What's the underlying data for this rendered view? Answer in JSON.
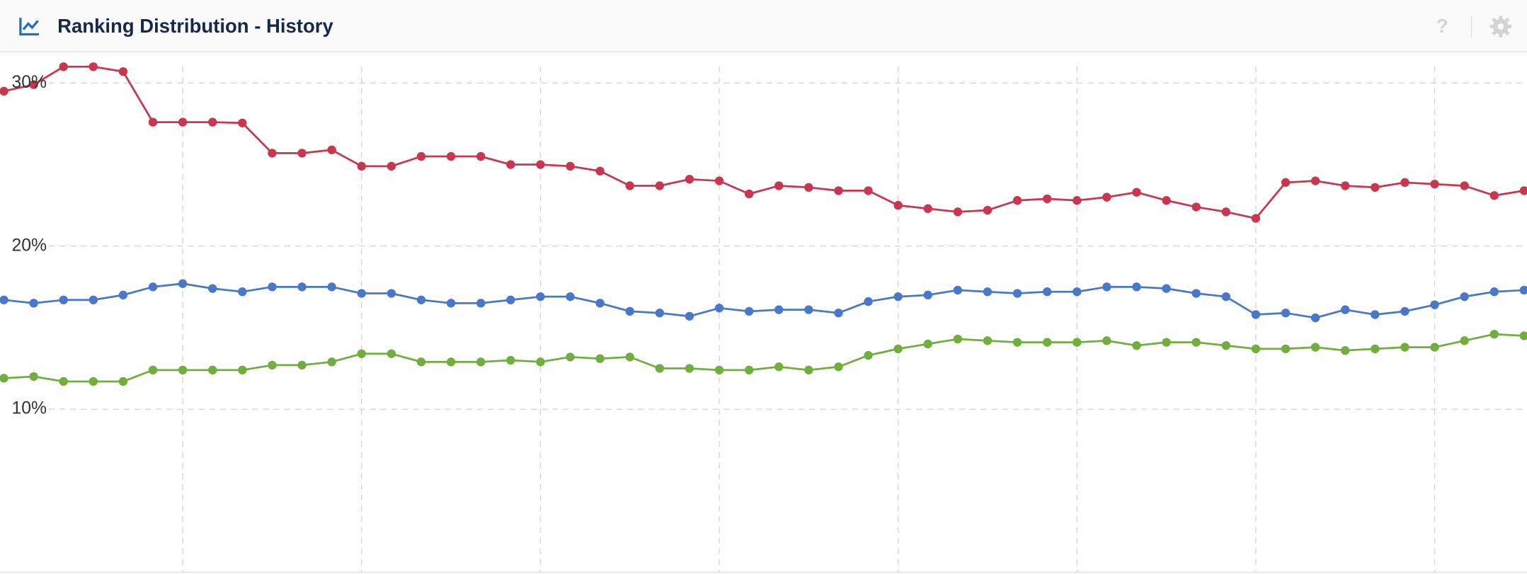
{
  "header": {
    "title": "Ranking Distribution - History"
  },
  "chart_data": {
    "type": "line",
    "categories": [
      null,
      null,
      null,
      null,
      null,
      null,
      null,
      null,
      null,
      null,
      null,
      null,
      null,
      null,
      null,
      null,
      null,
      null,
      null,
      null,
      null,
      null,
      null,
      null,
      null,
      null,
      null,
      null,
      null,
      null,
      null,
      null,
      null,
      null,
      null,
      null,
      null,
      null,
      null,
      null,
      null,
      null,
      null,
      null,
      null,
      null,
      null,
      null,
      null,
      null,
      null,
      null
    ],
    "ylim": [
      0,
      32
    ],
    "yticks": [
      {
        "value": 10,
        "label": "10%"
      },
      {
        "value": 20,
        "label": "20%"
      },
      {
        "value": 30,
        "label": "30%"
      }
    ],
    "grid": true,
    "series": [
      {
        "color": "#c8374e",
        "values": [
          29.5,
          29.9,
          31.0,
          31.0,
          30.7,
          27.6,
          27.6,
          27.6,
          27.55,
          25.7,
          25.7,
          25.9,
          24.9,
          24.9,
          25.5,
          25.5,
          25.5,
          25.0,
          25.0,
          24.9,
          24.6,
          23.7,
          23.7,
          24.1,
          24.0,
          23.2,
          23.7,
          23.6,
          23.4,
          23.4,
          22.5,
          22.3,
          22.1,
          22.2,
          22.8,
          22.9,
          22.8,
          23.0,
          23.3,
          22.8,
          22.4,
          22.1,
          21.7,
          23.9,
          24.0,
          23.7,
          23.6,
          23.9,
          23.8,
          23.7,
          23.1,
          23.4
        ]
      },
      {
        "color": "#4a78c9",
        "values": [
          16.7,
          16.5,
          16.7,
          16.7,
          17.0,
          17.5,
          17.7,
          17.4,
          17.2,
          17.5,
          17.5,
          17.5,
          17.1,
          17.1,
          16.7,
          16.5,
          16.5,
          16.7,
          16.9,
          16.9,
          16.5,
          16.0,
          15.9,
          15.7,
          16.2,
          16.0,
          16.1,
          16.1,
          15.9,
          16.6,
          16.9,
          17.0,
          17.3,
          17.2,
          17.1,
          17.2,
          17.2,
          17.5,
          17.5,
          17.4,
          17.1,
          16.9,
          15.8,
          15.9,
          15.6,
          16.1,
          15.8,
          16.0,
          16.4,
          16.9,
          17.2,
          17.3
        ]
      },
      {
        "color": "#72ad3f",
        "values": [
          11.9,
          12.0,
          11.7,
          11.7,
          11.7,
          12.4,
          12.4,
          12.4,
          12.4,
          12.7,
          12.7,
          12.9,
          13.4,
          13.4,
          12.9,
          12.9,
          12.9,
          13.0,
          12.9,
          13.2,
          13.1,
          13.2,
          12.5,
          12.5,
          12.4,
          12.4,
          12.6,
          12.4,
          12.6,
          13.3,
          13.7,
          14.0,
          14.3,
          14.2,
          14.1,
          14.1,
          14.1,
          14.2,
          13.9,
          14.1,
          14.1,
          13.9,
          13.7,
          13.7,
          13.8,
          13.6,
          13.7,
          13.8,
          13.8,
          14.2,
          14.6,
          14.5
        ]
      }
    ]
  }
}
